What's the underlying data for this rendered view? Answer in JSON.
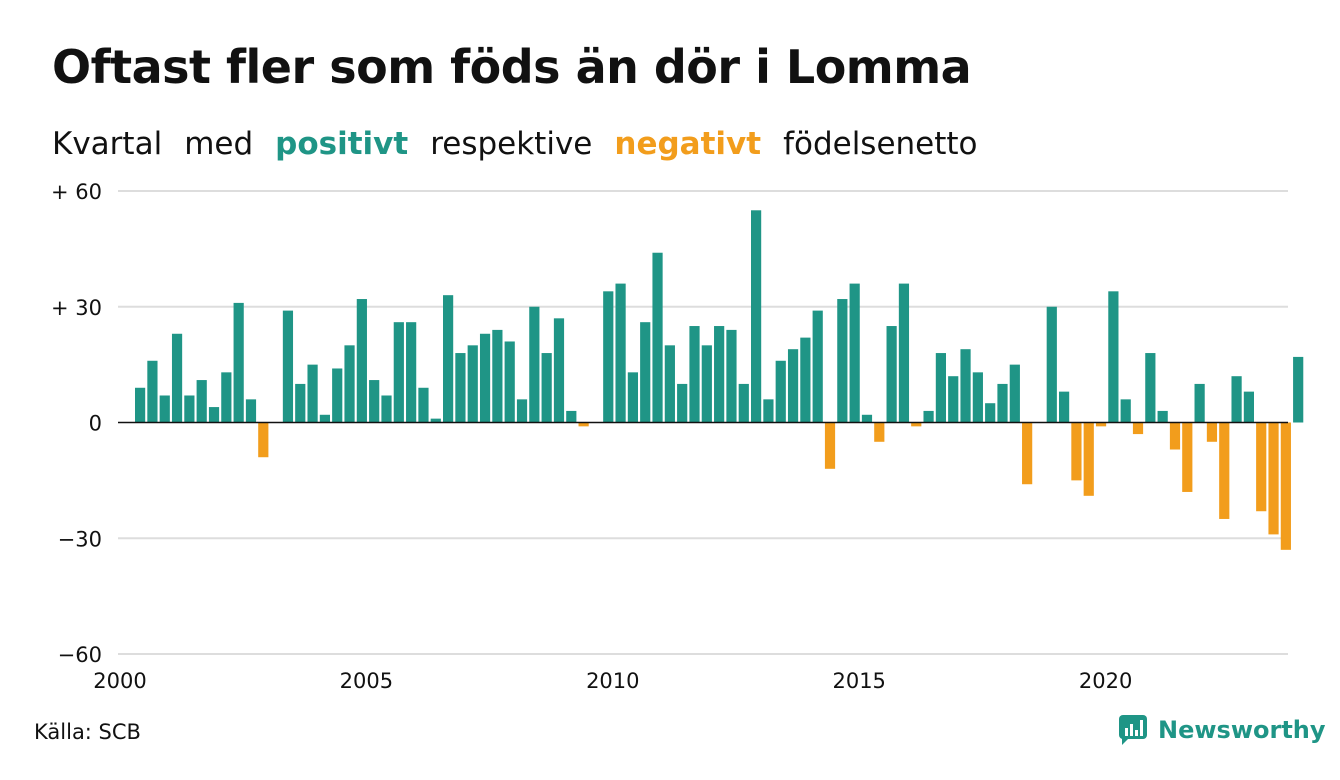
{
  "header": {
    "title": "Oftast fler som föds än dör i Lomma",
    "subtitle_parts": [
      "Kvartal",
      "med",
      "positivt",
      "respektive",
      "negativt",
      "födelsenetto"
    ]
  },
  "footer": {
    "source": "Källa: SCB",
    "brand": "Newsworthy"
  },
  "colors": {
    "positive": "#1f9586",
    "negative": "#f29d1c",
    "grid": "#dddddd",
    "axis": "#111111"
  },
  "chart_data": {
    "type": "bar",
    "x_start": "2000 Q1",
    "y_ticks": [
      {
        "value": 60,
        "label": "+ 60"
      },
      {
        "value": 30,
        "label": "+ 30"
      },
      {
        "value": 0,
        "label": "0"
      },
      {
        "value": -30,
        "label": "−30"
      },
      {
        "value": -60,
        "label": "−60"
      }
    ],
    "x_ticks": [
      "2000",
      "2005",
      "2010",
      "2015",
      "2020"
    ],
    "ylim": [
      -60,
      60
    ],
    "grid": true,
    "values": [
      9,
      16,
      7,
      23,
      7,
      11,
      4,
      13,
      31,
      6,
      -9,
      0,
      29,
      10,
      15,
      2,
      14,
      20,
      32,
      11,
      7,
      26,
      26,
      9,
      1,
      33,
      18,
      20,
      23,
      24,
      21,
      6,
      30,
      18,
      27,
      3,
      -1,
      0,
      34,
      36,
      13,
      26,
      44,
      20,
      10,
      25,
      20,
      25,
      24,
      10,
      55,
      6,
      16,
      19,
      22,
      29,
      -12,
      32,
      36,
      2,
      -5,
      25,
      36,
      -1,
      3,
      18,
      12,
      19,
      13,
      5,
      10,
      15,
      -16,
      0,
      30,
      8,
      -15,
      -19,
      -1,
      34,
      6,
      -3,
      18,
      3,
      -7,
      -18,
      10,
      -5,
      -25,
      12,
      8,
      -23,
      -29,
      -33,
      17
    ]
  }
}
